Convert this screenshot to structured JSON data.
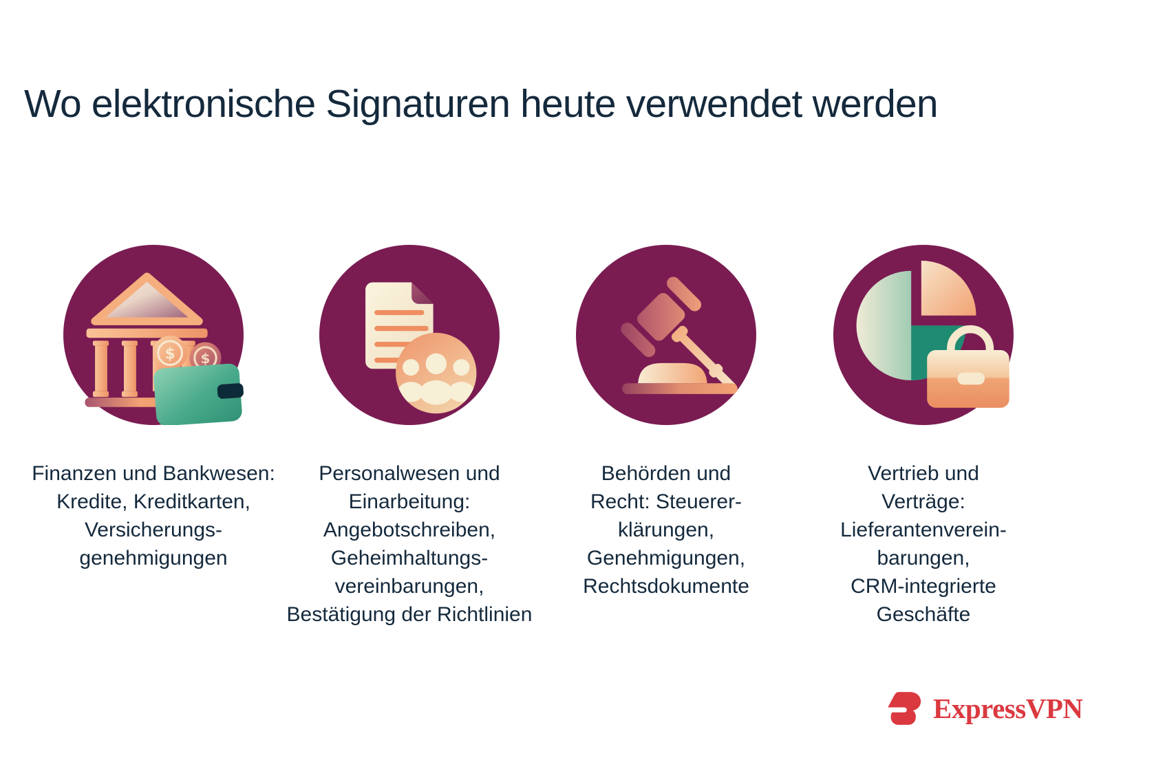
{
  "title": "Wo elektronische Signaturen heute verwendet werden",
  "cards": [
    {
      "icon": "bank-wallet-icon",
      "lines": [
        "Finanzen und Bankwesen:",
        "Kredite, Kreditkarten,",
        "Versicherungs-",
        "genehmigungen"
      ]
    },
    {
      "icon": "documents-team-icon",
      "lines": [
        "Personalwesen und",
        "Einarbeitung:",
        "Angebotschreiben,",
        "Geheimhaltungs-",
        "vereinbarungen,",
        "Bestätigung der Richtlinien"
      ]
    },
    {
      "icon": "gavel-icon",
      "lines": [
        "Behörden und",
        "Recht: Steuerer-",
        "klärungen,",
        "Genehmigungen,",
        "Rechtsdokumente"
      ]
    },
    {
      "icon": "pie-chart-briefcase-icon",
      "lines": [
        "Vertrieb und",
        "Verträge:",
        "Lieferantenverein-",
        "barungen,",
        "CRM-integrierte",
        "Geschäfte"
      ]
    }
  ],
  "footer": {
    "brand": "ExpressVPN"
  },
  "colors": {
    "navy": "#14293C",
    "plum": "#7A1C52",
    "red": "#DB3940",
    "peach": "#F2A273",
    "cream": "#F6E9CD",
    "teal": "#3FA287",
    "dark_teal": "#1E8B72",
    "orange": "#EF946A"
  }
}
